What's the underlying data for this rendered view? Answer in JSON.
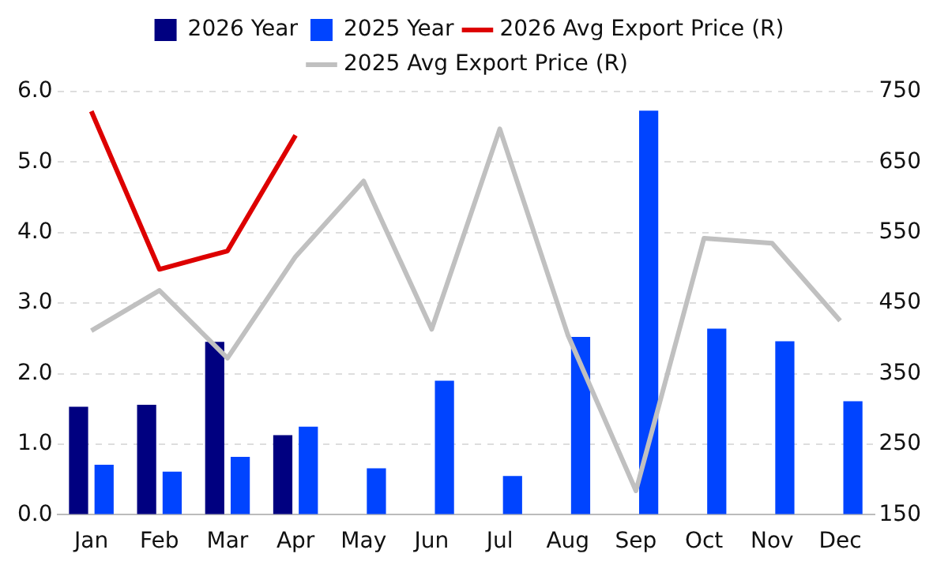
{
  "chart_data": {
    "type": "bar",
    "categories": [
      "Jan",
      "Feb",
      "Mar",
      "Apr",
      "May",
      "Jun",
      "Jul",
      "Aug",
      "Sep",
      "Oct",
      "Nov",
      "Dec"
    ],
    "series": [
      {
        "name": "2026 Year",
        "color": "#000080",
        "values": [
          1.53,
          1.56,
          2.45,
          1.13,
          null,
          null,
          null,
          null,
          null,
          null,
          null,
          null
        ]
      },
      {
        "name": "2025 Year",
        "color": "#0044ff",
        "values": [
          0.71,
          0.61,
          0.82,
          1.25,
          0.66,
          1.9,
          0.55,
          2.52,
          5.73,
          2.64,
          2.46,
          1.61
        ]
      },
      {
        "name": "2026 Avg Export Price (R)",
        "type": "line",
        "axis": "y2",
        "color": "#dd0000",
        "values": [
          722,
          498,
          524,
          688,
          null,
          null,
          null,
          null,
          null,
          null,
          null,
          null
        ]
      },
      {
        "name": "2025 Avg Export Price (R)",
        "type": "line",
        "axis": "y2",
        "color": "#c0c0c0",
        "values": [
          411,
          468,
          372,
          516,
          623,
          413,
          697,
          405,
          184,
          542,
          535,
          425
        ]
      }
    ],
    "ylim": [
      0,
      6
    ],
    "yticks": [
      {
        "value": 0,
        "label": "0.0"
      },
      {
        "value": 1,
        "label": "1.0"
      },
      {
        "value": 2,
        "label": "2.0"
      },
      {
        "value": 3,
        "label": "3.0"
      },
      {
        "value": 4,
        "label": "4.0"
      },
      {
        "value": 5,
        "label": "5.0"
      },
      {
        "value": 6,
        "label": "6.0"
      }
    ],
    "y2lim": [
      150,
      750
    ],
    "y2ticks": [
      150,
      250,
      350,
      450,
      550,
      650,
      750
    ],
    "grid": "y",
    "legend": "top",
    "marker": "none",
    "line_style": "solid"
  }
}
